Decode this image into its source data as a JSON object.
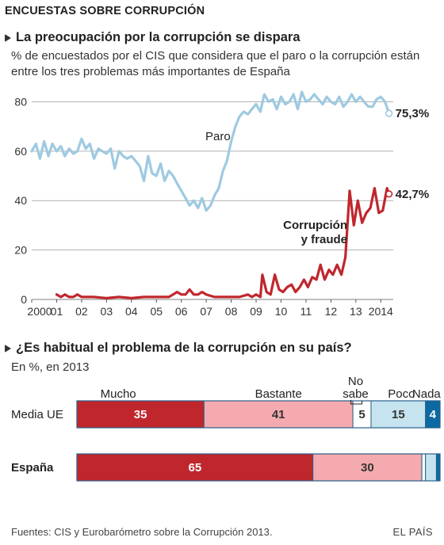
{
  "header": "ENCUESTAS SOBRE CORRUPCIÓN",
  "footer": {
    "source": "Fuentes: CIS y Eurobarómetro sobre la Corrupción 2013.",
    "credit": "EL PAÍS"
  },
  "colors": {
    "paro": "#9ecae1",
    "corrupcion": "#c0272d",
    "mucho": "#c0272d",
    "bastante": "#f4aaae",
    "no_sabe": "#ffffff",
    "poco": "#c6e4ef",
    "nada": "#0a6aa1",
    "grid": "#999999"
  },
  "chart_data": [
    {
      "type": "line",
      "title": "La preocupación por la corrupción se dispara",
      "subtitle": "% de encuestados por el CIS que considera que el paro o la corrupción están entre los tres problemas más importantes de España",
      "xlabel": "",
      "ylabel": "",
      "x_ticks": [
        "2000",
        "01",
        "02",
        "03",
        "04",
        "05",
        "06",
        "07",
        "08",
        "09",
        "10",
        "11",
        "12",
        "13",
        "2014"
      ],
      "y_ticks": [
        0,
        20,
        40,
        60,
        80
      ],
      "xlim": [
        2000,
        2014.5
      ],
      "ylim": [
        0,
        84
      ],
      "grid": "horizontal",
      "series": [
        {
          "name": "Paro",
          "end_label": "75,3%",
          "x": [
            2000.0,
            2000.17,
            2000.33,
            2000.5,
            2000.67,
            2000.83,
            2001.0,
            2001.17,
            2001.33,
            2001.5,
            2001.67,
            2001.83,
            2002.0,
            2002.17,
            2002.33,
            2002.5,
            2002.67,
            2002.83,
            2003.0,
            2003.17,
            2003.33,
            2003.5,
            2003.67,
            2003.83,
            2004.0,
            2004.17,
            2004.33,
            2004.5,
            2004.67,
            2004.83,
            2005.0,
            2005.17,
            2005.33,
            2005.5,
            2005.67,
            2005.83,
            2006.0,
            2006.17,
            2006.33,
            2006.5,
            2006.67,
            2006.83,
            2007.0,
            2007.17,
            2007.33,
            2007.5,
            2007.67,
            2007.83,
            2008.0,
            2008.17,
            2008.33,
            2008.5,
            2008.67,
            2008.83,
            2009.0,
            2009.17,
            2009.33,
            2009.5,
            2009.67,
            2009.83,
            2010.0,
            2010.17,
            2010.33,
            2010.5,
            2010.67,
            2010.83,
            2011.0,
            2011.17,
            2011.33,
            2011.5,
            2011.67,
            2011.83,
            2012.0,
            2012.17,
            2012.33,
            2012.5,
            2012.67,
            2012.83,
            2013.0,
            2013.17,
            2013.33,
            2013.5,
            2013.67,
            2013.83,
            2014.0,
            2014.17,
            2014.33
          ],
          "values": [
            60,
            63,
            57,
            64,
            58,
            63,
            60,
            62,
            58,
            61,
            59,
            60,
            65,
            61,
            63,
            57,
            61,
            60,
            59,
            61,
            53,
            60,
            58,
            57,
            58,
            56,
            54,
            48,
            58,
            51,
            50,
            55,
            48,
            52,
            50,
            47,
            44,
            41,
            38,
            40,
            37,
            41,
            36,
            38,
            42,
            45,
            52,
            56,
            64,
            70,
            74,
            76,
            75,
            77,
            79,
            76,
            83,
            80,
            81,
            77,
            82,
            79,
            80,
            83,
            77,
            84,
            80,
            81,
            83,
            81,
            79,
            82,
            80,
            79,
            82,
            78,
            80,
            83,
            80,
            82,
            80,
            78,
            78,
            81,
            82,
            80,
            75.3
          ]
        },
        {
          "name": "Corrupción y fraude",
          "end_label": "42,7%",
          "x": [
            2001.0,
            2001.17,
            2001.33,
            2001.5,
            2001.67,
            2001.83,
            2002.0,
            2002.5,
            2003.0,
            2003.5,
            2004.0,
            2004.5,
            2005.0,
            2005.5,
            2005.67,
            2005.83,
            2006.0,
            2006.17,
            2006.33,
            2006.5,
            2006.67,
            2006.83,
            2007.0,
            2007.33,
            2007.67,
            2008.0,
            2008.33,
            2008.67,
            2008.83,
            2009.0,
            2009.17,
            2009.25,
            2009.42,
            2009.58,
            2009.75,
            2009.92,
            2010.08,
            2010.25,
            2010.42,
            2010.58,
            2010.75,
            2010.92,
            2011.08,
            2011.25,
            2011.42,
            2011.58,
            2011.75,
            2011.92,
            2012.08,
            2012.25,
            2012.42,
            2012.58,
            2012.75,
            2012.92,
            2013.08,
            2013.25,
            2013.42,
            2013.58,
            2013.75,
            2013.92,
            2014.08,
            2014.25,
            2014.33
          ],
          "values": [
            2,
            1,
            2,
            1,
            1,
            2,
            1,
            1,
            0.5,
            1,
            0.5,
            1,
            1,
            1,
            2,
            3,
            2,
            2,
            4,
            2,
            2,
            3,
            2,
            1,
            1,
            1,
            1,
            2,
            1,
            2,
            1,
            10,
            3,
            2,
            10,
            4,
            3,
            5,
            6,
            3,
            5,
            8,
            5,
            9,
            8,
            14,
            8,
            12,
            10,
            14,
            10,
            17,
            44,
            30,
            40,
            31,
            35,
            37,
            45,
            35,
            36,
            45,
            42.7
          ]
        }
      ],
      "annotations": [
        {
          "text": "Paro"
        },
        {
          "text": "Corrupción"
        },
        {
          "text": "y fraude"
        }
      ]
    },
    {
      "type": "bar",
      "title": "¿Es habitual el problema de la corrupción en su país?",
      "subtitle": "En %, en 2013",
      "stacked": true,
      "orientation": "horizontal",
      "categories": [
        "Media UE",
        "España"
      ],
      "series": [
        {
          "name": "Mucho",
          "values": [
            35,
            65
          ]
        },
        {
          "name": "Bastante",
          "values": [
            41,
            30
          ]
        },
        {
          "name": "No sabe",
          "values": [
            5,
            1
          ]
        },
        {
          "name": "Poco",
          "values": [
            15,
            3
          ]
        },
        {
          "name": "Nada",
          "values": [
            4,
            1
          ]
        }
      ],
      "legend_labels": [
        "Mucho",
        "Bastante",
        "No",
        "sabe",
        "Poco",
        "Nada"
      ],
      "data_labels": [
        [
          "35",
          "41",
          "5",
          "15",
          "4"
        ],
        [
          "65",
          "30",
          "",
          "",
          ""
        ]
      ]
    }
  ]
}
